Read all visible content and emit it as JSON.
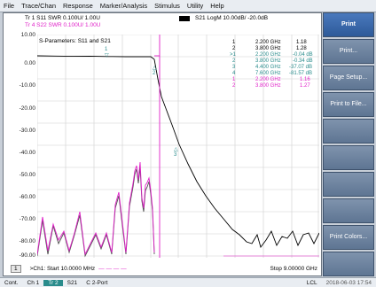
{
  "menu": [
    "File",
    "Trace/Chan",
    "Response",
    "Marker/Analysis",
    "Stimulus",
    "Utility",
    "Help"
  ],
  "traces": {
    "tr1": "Tr 1  S11 SWR 0.100U/ 1.00U",
    "tr4": "Tr 4  S22 SWR 0.100U/ 1.00U",
    "tr3": "S21 LogM 10.00dB/ -20.0dB",
    "plot_title": "S-Parameters: S11 and S21"
  },
  "y_ticks": [
    "10.00",
    "0.00",
    "-10.00",
    "-20.00",
    "-30.00",
    "-40.00",
    "-50.00",
    "-60.00",
    "-70.00",
    "-80.00",
    "-90.00"
  ],
  "marker_table": [
    {
      "id": "1",
      "freq": "2.200 GHz",
      "val": "1.18",
      "color": "#000000"
    },
    {
      "id": "2",
      "freq": "3.800 GHz",
      "val": "1.28",
      "color": "#000000"
    },
    {
      "id": ">1",
      "freq": "2.200 GHz",
      "val": "-0.04 dB",
      "color": "#2a8c8c"
    },
    {
      "id": "2",
      "freq": "3.800 GHz",
      "val": "-0.34 dB",
      "color": "#2a8c8c"
    },
    {
      "id": "3",
      "freq": "4.400 GHz",
      "val": "-37.07 dB",
      "color": "#2a8c8c"
    },
    {
      "id": "4",
      "freq": "7.600 GHz",
      "val": "-81.57 dB",
      "color": "#2a8c8c"
    },
    {
      "id": "1",
      "freq": "2.200 GHz",
      "val": "1.16",
      "color": "#e020c8"
    },
    {
      "id": "2",
      "freq": "3.800 GHz",
      "val": "1.27",
      "color": "#e020c8"
    }
  ],
  "bottom": {
    "channel": "1",
    "start": ">Ch1: Start  10.0000 MHz",
    "stop": "Stop  9.00000 GHz"
  },
  "softkeys": [
    "Print",
    "Print...",
    "Page Setup...",
    "Print to File...",
    "",
    "",
    "",
    "",
    "Print Colors...",
    ""
  ],
  "status": {
    "left": [
      "Cont.",
      "Ch 1",
      "Tr 2",
      "S21",
      "C  2-Port"
    ],
    "right": [
      "LCL",
      "2018-06-03 17:54"
    ]
  },
  "colors": {
    "s11": "#000000",
    "s21": "#404040",
    "s22": "#e020c8",
    "accent": "#2a8c8c"
  }
}
